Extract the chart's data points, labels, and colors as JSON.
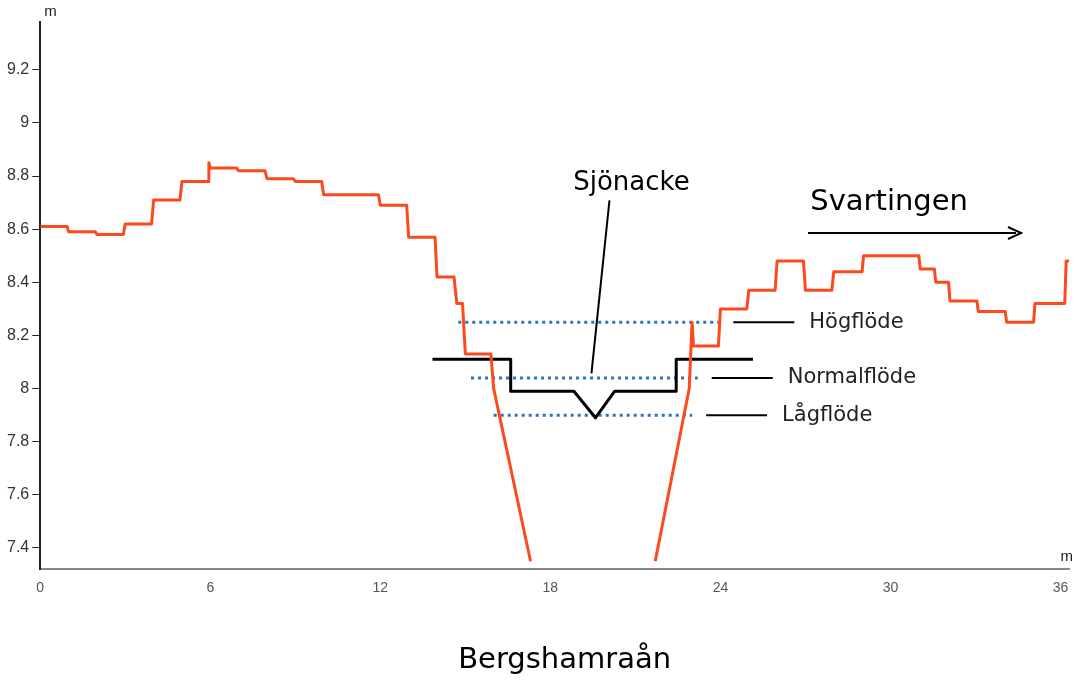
{
  "chart_data": {
    "type": "line",
    "xlabel": "m",
    "ylabel": "m",
    "xlim": [
      0,
      36.3
    ],
    "xticks": [
      0,
      6,
      12,
      18,
      24,
      30,
      36
    ],
    "ylim": [
      7.32,
      9.38
    ],
    "yticks": [
      7.4,
      7.6,
      7.8,
      8,
      8.2,
      8.4,
      8.6,
      8.8,
      9,
      9.2
    ],
    "grid": false,
    "legend": false,
    "marker": "none",
    "series": [
      {
        "color": "#fc4a1e",
        "x": [
          0,
          0.95,
          1.0,
          1.95,
          2.0,
          2.93,
          3.0,
          3.93,
          4.0,
          4.93,
          5.0,
          5.93,
          5.95,
          6.0,
          6.93,
          7.0,
          7.93,
          8.0,
          8.93,
          9.0,
          9.93,
          10.0,
          11.93,
          12.0,
          12.93,
          13.0,
          13.93,
          14.0,
          14.6,
          14.7,
          14.9,
          15.0,
          15.9,
          16.0,
          17.3,
          19.5,
          21.7,
          22.9,
          23.0,
          23.05,
          23.93,
          24.0,
          24.93,
          25.0,
          25.93,
          26.0,
          26.93,
          27.0,
          27.93,
          28.0,
          29.0,
          29.05,
          31.0,
          31.05,
          31.55,
          31.6,
          32.05,
          32.1,
          33.05,
          33.1,
          34.05,
          34.1,
          35.05,
          35.1,
          36.15,
          36.2,
          36.3
        ],
        "values": [
          8.61,
          8.61,
          8.59,
          8.59,
          8.58,
          8.58,
          8.62,
          8.62,
          8.71,
          8.71,
          8.78,
          8.78,
          8.85,
          8.83,
          8.83,
          8.82,
          8.82,
          8.79,
          8.79,
          8.78,
          8.78,
          8.73,
          8.73,
          8.69,
          8.69,
          8.57,
          8.57,
          8.42,
          8.42,
          8.32,
          8.32,
          8.13,
          8.13,
          8.0,
          7.35,
          null,
          7.35,
          8.0,
          8.25,
          8.16,
          8.16,
          8.3,
          8.3,
          8.37,
          8.37,
          8.48,
          8.48,
          8.37,
          8.37,
          8.44,
          8.44,
          8.5,
          8.5,
          8.45,
          8.45,
          8.4,
          8.4,
          8.33,
          8.33,
          8.29,
          8.29,
          8.25,
          8.25,
          8.32,
          8.32,
          8.48,
          8.48
        ]
      },
      {
        "color": "#000000",
        "x": [
          13.84,
          16.6,
          16.6,
          18.83,
          19.59,
          20.27,
          22.44,
          22.44,
          25.15
        ],
        "values": [
          8.11,
          8.11,
          7.99,
          7.99,
          7.89,
          7.99,
          7.99,
          8.11,
          8.11
        ]
      },
      {
        "name": "Högflöde",
        "color": "#2e75b6",
        "line_style": "dotted",
        "x": [
          14.75,
          23.96
        ],
        "values": [
          8.25,
          8.25
        ]
      },
      {
        "name": "Normalflöde",
        "color": "#2e75b6",
        "line_style": "dotted",
        "x": [
          15.2,
          23.2
        ],
        "values": [
          8.04,
          8.04
        ]
      },
      {
        "name": "Lågflöde",
        "color": "#2e75b6",
        "line_style": "dotted",
        "x": [
          16.0,
          23.0
        ],
        "values": [
          7.9,
          7.9
        ]
      }
    ],
    "annotations": [
      {
        "text": "Sjönacke",
        "x": 19.45,
        "y": 8.05
      },
      "Svartingen",
      "Bergshamraån"
    ]
  }
}
